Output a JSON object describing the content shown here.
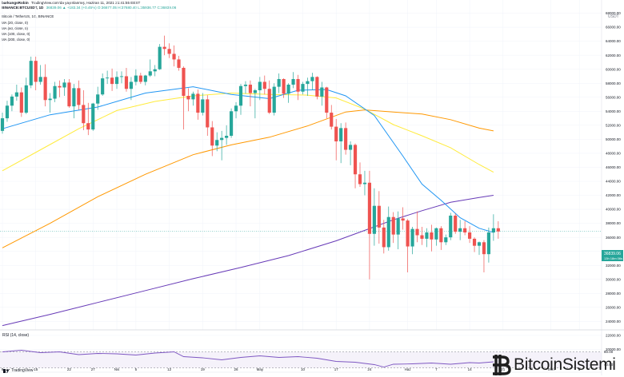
{
  "header": {
    "line1_user": "barkungsRobin",
    "line1_suffix": "TradingView.com'da yayınlanmış, Haziran 11, 2021 21:41:55 EEST",
    "line2_symbol": "BINANCE:BTCUSDT, 1D",
    "line2_values": "36839.06 ▲ +183.34 (+0.45%) O:36677.05 H:37680.40 L:35936.77 C:36839.06"
  },
  "pane_title": "Bitcoin / TetherUS, 1G, BINANCE",
  "indicators": [
    "MA (20, close, 0)",
    "MA (50, close, 0)",
    "MA (100, close, 0)",
    "MA (200, close, 0)"
  ],
  "rsi_label": "RSI (14, close)",
  "currency_label": "USDT",
  "price_label": "36839.06",
  "price_sublabel": "13h 18m 06s",
  "rsi_ticks": [
    "80.00",
    "40.00"
  ],
  "watermark": "BitcoinSistemi",
  "tradingview_label": "TradingView",
  "colors": {
    "up": "#26a69a",
    "down": "#ef5350",
    "ma20": "#2196f3",
    "ma50": "#ffeb3b",
    "ma100": "#ff9800",
    "ma200": "#673ab7",
    "rsi": "#7e57c2"
  },
  "chart_data": {
    "type": "candlestick",
    "title": "Bitcoin / TetherUS, 1G, BINANCE",
    "ylabel": "USDT",
    "ylim": [
      18000,
      70000
    ],
    "y_ticks": [
      20000,
      22000,
      24000,
      26000,
      28000,
      30000,
      32000,
      34000,
      36000,
      38000,
      40000,
      42000,
      44000,
      46000,
      48000,
      50000,
      52000,
      54000,
      56000,
      58000,
      60000,
      62000,
      64000,
      66000,
      68000
    ],
    "x_ticks": [
      {
        "label": "8",
        "i": 0
      },
      {
        "label": "15",
        "i": 7
      },
      {
        "label": "22",
        "i": 14
      },
      {
        "label": "27",
        "i": 19
      },
      {
        "label": "Nis",
        "i": 24
      },
      {
        "label": "5",
        "i": 28
      },
      {
        "label": "12",
        "i": 35
      },
      {
        "label": "19",
        "i": 42
      },
      {
        "label": "26",
        "i": 49
      },
      {
        "label": "May",
        "i": 54
      },
      {
        "label": "10",
        "i": 63
      },
      {
        "label": "17",
        "i": 70
      },
      {
        "label": "24",
        "i": 77
      },
      {
        "label": "Haz",
        "i": 85
      },
      {
        "label": "7",
        "i": 91
      },
      {
        "label": "14",
        "i": 98
      },
      {
        "label": "21",
        "i": 105
      },
      {
        "label": "Tem",
        "i": 115
      },
      {
        "label": "6",
        "i": 121
      }
    ],
    "candles": [
      [
        51200,
        53800,
        50800,
        53000
      ],
      [
        53000,
        55500,
        52500,
        54800
      ],
      [
        54800,
        56400,
        54000,
        56100
      ],
      [
        56100,
        57800,
        55500,
        56700
      ],
      [
        56700,
        57400,
        53200,
        53800
      ],
      [
        53800,
        58800,
        53600,
        57700
      ],
      [
        57700,
        61800,
        57300,
        61200
      ],
      [
        61200,
        61800,
        57000,
        58200
      ],
      [
        58200,
        60600,
        57800,
        58900
      ],
      [
        58900,
        60700,
        54700,
        55600
      ],
      [
        55600,
        56600,
        53800,
        55800
      ],
      [
        55800,
        58200,
        55300,
        57600
      ],
      [
        57600,
        58400,
        56000,
        57400
      ],
      [
        57400,
        58600,
        56200,
        58100
      ],
      [
        58100,
        58600,
        54500,
        54700
      ],
      [
        54700,
        57900,
        53000,
        57300
      ],
      [
        57300,
        58400,
        54200,
        54900
      ],
      [
        54900,
        57000,
        51300,
        52300
      ],
      [
        52300,
        55200,
        50600,
        51400
      ],
      [
        51400,
        55200,
        51200,
        55100
      ],
      [
        55100,
        57500,
        54200,
        56400
      ],
      [
        56400,
        59400,
        56200,
        58700
      ],
      [
        58700,
        59800,
        57900,
        58800
      ],
      [
        58800,
        60100,
        56900,
        57900
      ],
      [
        57900,
        59700,
        57200,
        58900
      ],
      [
        58900,
        59700,
        58000,
        59000
      ],
      [
        59000,
        60200,
        56800,
        57200
      ],
      [
        57200,
        58900,
        55600,
        58200
      ],
      [
        58200,
        60000,
        57700,
        59100
      ],
      [
        59100,
        59500,
        57900,
        58200
      ],
      [
        58200,
        59200,
        57700,
        59100
      ],
      [
        59100,
        61400,
        58900,
        59700
      ],
      [
        59700,
        60600,
        59000,
        60000
      ],
      [
        60000,
        63600,
        59900,
        63200
      ],
      [
        63200,
        64800,
        62000,
        62900
      ],
      [
        62900,
        63700,
        61600,
        62200
      ],
      [
        62200,
        63400,
        60400,
        61400
      ],
      [
        61400,
        61900,
        59800,
        60200
      ],
      [
        60200,
        60400,
        51400,
        56200
      ],
      [
        56200,
        57300,
        54000,
        55700
      ],
      [
        55700,
        56800,
        54800,
        56500
      ],
      [
        56500,
        57100,
        52800,
        53800
      ],
      [
        53800,
        56600,
        53400,
        55700
      ],
      [
        55700,
        56300,
        50500,
        51700
      ],
      [
        51700,
        52600,
        47600,
        49100
      ],
      [
        49100,
        51000,
        48300,
        49900
      ],
      [
        49900,
        51200,
        47000,
        50200
      ],
      [
        50200,
        52000,
        49200,
        50500
      ],
      [
        50500,
        54400,
        50200,
        54000
      ],
      [
        54000,
        55300,
        53000,
        54800
      ],
      [
        54800,
        57900,
        53500,
        57600
      ],
      [
        57600,
        58300,
        56500,
        57800
      ],
      [
        57800,
        58400,
        54700,
        56600
      ],
      [
        56600,
        57200,
        53000,
        57000
      ],
      [
        57000,
        58900,
        55600,
        58200
      ],
      [
        58200,
        59100,
        56400,
        57200
      ],
      [
        57200,
        58400,
        53600,
        53800
      ],
      [
        53800,
        58000,
        53400,
        57500
      ],
      [
        57500,
        59400,
        56600,
        58600
      ],
      [
        58600,
        58700,
        55900,
        56500
      ],
      [
        56500,
        58000,
        55200,
        57800
      ],
      [
        57800,
        59600,
        57300,
        58600
      ],
      [
        58600,
        59200,
        55600,
        56800
      ],
      [
        56800,
        58200,
        56400,
        57900
      ],
      [
        57900,
        58800,
        56200,
        58300
      ],
      [
        58300,
        59500,
        57000,
        58900
      ],
      [
        58900,
        59000,
        55700,
        56100
      ],
      [
        56100,
        58200,
        54800,
        57400
      ],
      [
        57400,
        57500,
        53000,
        53800
      ],
      [
        53800,
        54900,
        51400,
        51800
      ],
      [
        51800,
        52900,
        47000,
        49700
      ],
      [
        49700,
        52300,
        46600,
        51600
      ],
      [
        51600,
        52400,
        47800,
        48500
      ],
      [
        48500,
        49700,
        46300,
        49200
      ],
      [
        49200,
        49400,
        43000,
        45000
      ],
      [
        45000,
        46700,
        43200,
        43600
      ],
      [
        43600,
        45500,
        42000,
        43800
      ],
      [
        43800,
        45500,
        30000,
        36500
      ],
      [
        36500,
        43000,
        34800,
        40500
      ],
      [
        40500,
        42600,
        35100,
        37400
      ],
      [
        37400,
        38500,
        33700,
        34600
      ],
      [
        34600,
        40400,
        34100,
        38900
      ],
      [
        38900,
        39600,
        35200,
        36400
      ],
      [
        36400,
        39700,
        34300,
        38700
      ],
      [
        38700,
        40300,
        37100,
        38400
      ],
      [
        38400,
        38600,
        31000,
        34700
      ],
      [
        34700,
        37500,
        33600,
        37200
      ],
      [
        37200,
        39700,
        35300,
        36300
      ],
      [
        36300,
        37500,
        34900,
        35800
      ],
      [
        35800,
        37300,
        34600,
        36700
      ],
      [
        36700,
        37800,
        34000,
        35700
      ],
      [
        35700,
        37400,
        34800,
        37300
      ],
      [
        37300,
        37600,
        34200,
        35300
      ],
      [
        35300,
        36400,
        34900,
        36000
      ],
      [
        36000,
        39500,
        35600,
        39100
      ],
      [
        39100,
        39400,
        36500,
        36800
      ],
      [
        36800,
        38500,
        35600,
        37300
      ],
      [
        37300,
        38300,
        36300,
        36700
      ],
      [
        36700,
        37600,
        35200,
        35800
      ],
      [
        35800,
        36000,
        33900,
        34800
      ],
      [
        34800,
        35400,
        33500,
        35300
      ],
      [
        35300,
        35600,
        31000,
        33600
      ],
      [
        33600,
        37400,
        32400,
        36700
      ],
      [
        36700,
        39300,
        35500,
        37300
      ],
      [
        37300,
        38300,
        35800,
        36839
      ]
    ],
    "x_start": 3.0,
    "x_step": 5.96,
    "ma20": [
      [
        0,
        51500
      ],
      [
        10,
        53500
      ],
      [
        20,
        54600
      ],
      [
        30,
        56600
      ],
      [
        40,
        57500
      ],
      [
        48,
        56400
      ],
      [
        56,
        55800
      ],
      [
        62,
        57000
      ],
      [
        68,
        57100
      ],
      [
        72,
        56200
      ],
      [
        78,
        53400
      ],
      [
        84,
        47600
      ],
      [
        88,
        43600
      ],
      [
        92,
        41300
      ],
      [
        96,
        38800
      ],
      [
        100,
        37300
      ],
      [
        103,
        36700
      ]
    ],
    "ma50": [
      [
        0,
        45500
      ],
      [
        8,
        48500
      ],
      [
        16,
        51500
      ],
      [
        24,
        54100
      ],
      [
        32,
        55400
      ],
      [
        40,
        56200
      ],
      [
        48,
        56600
      ],
      [
        56,
        56400
      ],
      [
        64,
        56300
      ],
      [
        70,
        55900
      ],
      [
        76,
        54300
      ],
      [
        82,
        52100
      ],
      [
        88,
        50500
      ],
      [
        94,
        48800
      ],
      [
        100,
        46400
      ],
      [
        103,
        45300
      ]
    ],
    "ma100": [
      [
        0,
        34500
      ],
      [
        10,
        38000
      ],
      [
        20,
        41800
      ],
      [
        30,
        45000
      ],
      [
        40,
        47800
      ],
      [
        48,
        49200
      ],
      [
        56,
        50300
      ],
      [
        64,
        51900
      ],
      [
        72,
        53900
      ],
      [
        76,
        54200
      ],
      [
        82,
        53900
      ],
      [
        88,
        53600
      ],
      [
        94,
        52800
      ],
      [
        100,
        51600
      ],
      [
        103,
        51200
      ]
    ],
    "ma200": [
      [
        0,
        23400
      ],
      [
        10,
        25000
      ],
      [
        20,
        26700
      ],
      [
        30,
        28400
      ],
      [
        40,
        30100
      ],
      [
        50,
        31700
      ],
      [
        60,
        33400
      ],
      [
        70,
        35500
      ],
      [
        76,
        37000
      ],
      [
        82,
        38500
      ],
      [
        88,
        39800
      ],
      [
        94,
        41000
      ],
      [
        100,
        41700
      ],
      [
        103,
        42000
      ]
    ],
    "rsi": [
      [
        0,
        70
      ],
      [
        4,
        74
      ],
      [
        8,
        68
      ],
      [
        12,
        70
      ],
      [
        16,
        63
      ],
      [
        20,
        66
      ],
      [
        24,
        65
      ],
      [
        28,
        62
      ],
      [
        32,
        67
      ],
      [
        36,
        70
      ],
      [
        38,
        58
      ],
      [
        42,
        55
      ],
      [
        46,
        50
      ],
      [
        50,
        56
      ],
      [
        54,
        60
      ],
      [
        58,
        56
      ],
      [
        62,
        58
      ],
      [
        66,
        54
      ],
      [
        70,
        46
      ],
      [
        74,
        44
      ],
      [
        78,
        38
      ],
      [
        80,
        32
      ],
      [
        82,
        39
      ],
      [
        86,
        40
      ],
      [
        90,
        42
      ],
      [
        94,
        39
      ],
      [
        98,
        43
      ],
      [
        100,
        42
      ],
      [
        103,
        45
      ]
    ]
  }
}
